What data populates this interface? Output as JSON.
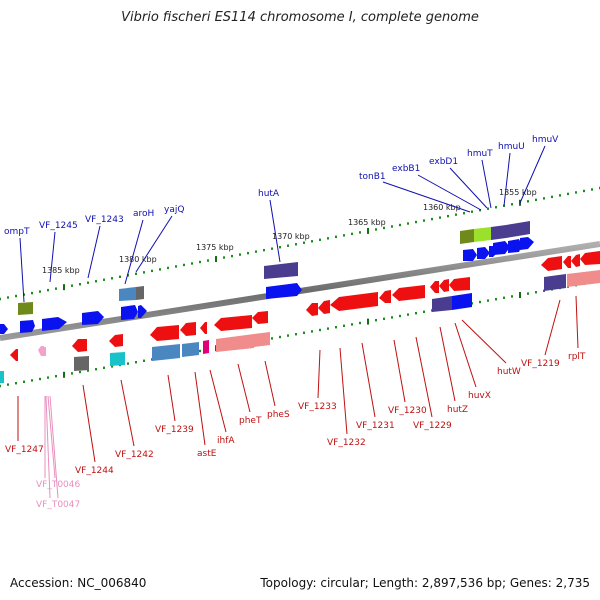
{
  "title": "Vibrio fischeri ES114 chromosome I, complete genome",
  "footer": {
    "accession": "Accession: NC_006840",
    "summary": "Topology: circular; Length: 2,897,536 bp; Genes: 2,735"
  },
  "colors": {
    "backbone": "#7a7a7a",
    "tick_minor": "#1a8f1a",
    "tick_major": "#156e15",
    "top_label": "#1010b0",
    "bottom_label": "#c01010",
    "rna_label": "#e98fc0",
    "forward_gene": "#0a12f0",
    "reverse_gene": "#ee1010",
    "cog_purple": "#4a3d8f",
    "cog_olive": "#6f8a1a",
    "cog_lime": "#9be02a",
    "cog_steel": "#4a86c0",
    "cog_salmon": "#f08c8c",
    "cog_teal": "#17c2c9",
    "cog_gray": "#666666",
    "cog_magenta": "#e0007a",
    "rna": "#f4a2cc"
  },
  "scale_labels": [
    "1355 kbp",
    "1360 kbp",
    "1365 kbp",
    "1370 kbp",
    "1375 kbp",
    "1380 kbp",
    "1385 kbp"
  ],
  "top_labels": [
    "ompT",
    "VF_1245",
    "VF_1243",
    "aroH",
    "yajQ",
    "hutA",
    "tonB1",
    "exbB1",
    "exbD1",
    "hmuT",
    "hmuU",
    "hmuV"
  ],
  "bottom_labels": [
    "VF_1247",
    "VF_1244",
    "VF_1242",
    "VF_1239",
    "astE",
    "ihfA",
    "pheT",
    "pheS",
    "VF_1233",
    "VF_1232",
    "VF_1231",
    "VF_1230",
    "VF_1229",
    "hutZ",
    "huvX",
    "hutW",
    "VF_1219",
    "rplT"
  ],
  "rna_labels": [
    "VF_T0046",
    "VF_T0047"
  ]
}
